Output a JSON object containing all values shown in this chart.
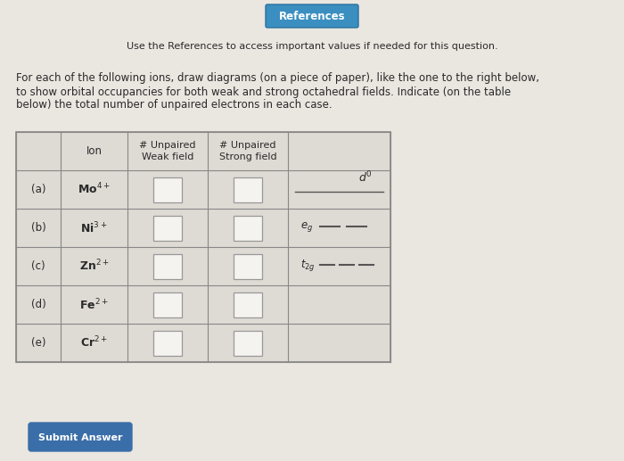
{
  "page_bg": "#eae6e0",
  "references_btn_color": "#3a8fc0",
  "references_btn_text": "References",
  "references_text": "Use the References to access important values if needed for this question.",
  "main_text_line1": "For each of the following ions, draw diagrams (on a piece of paper), like the one to the right below,",
  "main_text_line2": "to show orbital occupancies for both weak and strong octahedral fields. Indicate (on the table",
  "main_text_line3": "below) the total number of unpaired electrons in each case.",
  "col_header0": "Ion",
  "col_header1": "# Unpaired\nWeak field",
  "col_header2": "# Unpaired\nStrong field",
  "labels": [
    "(a)",
    "(b)",
    "(c)",
    "(d)",
    "(e)"
  ],
  "ions_display": [
    "Mo$^{4+}$",
    "Ni$^{3+}$",
    "Zn$^{2+}$",
    "Fe$^{2+}$",
    "Cr$^{2+}$"
  ],
  "submit_btn_color": "#3a6ea8",
  "submit_btn_text": "Submit Answer",
  "table_border_color": "#888888",
  "cell_bg": "#dedad4",
  "input_box_color": "#f5f3ef",
  "input_box_border": "#999999",
  "text_color": "#2a2a2a",
  "diagram_line_color": "#555555"
}
